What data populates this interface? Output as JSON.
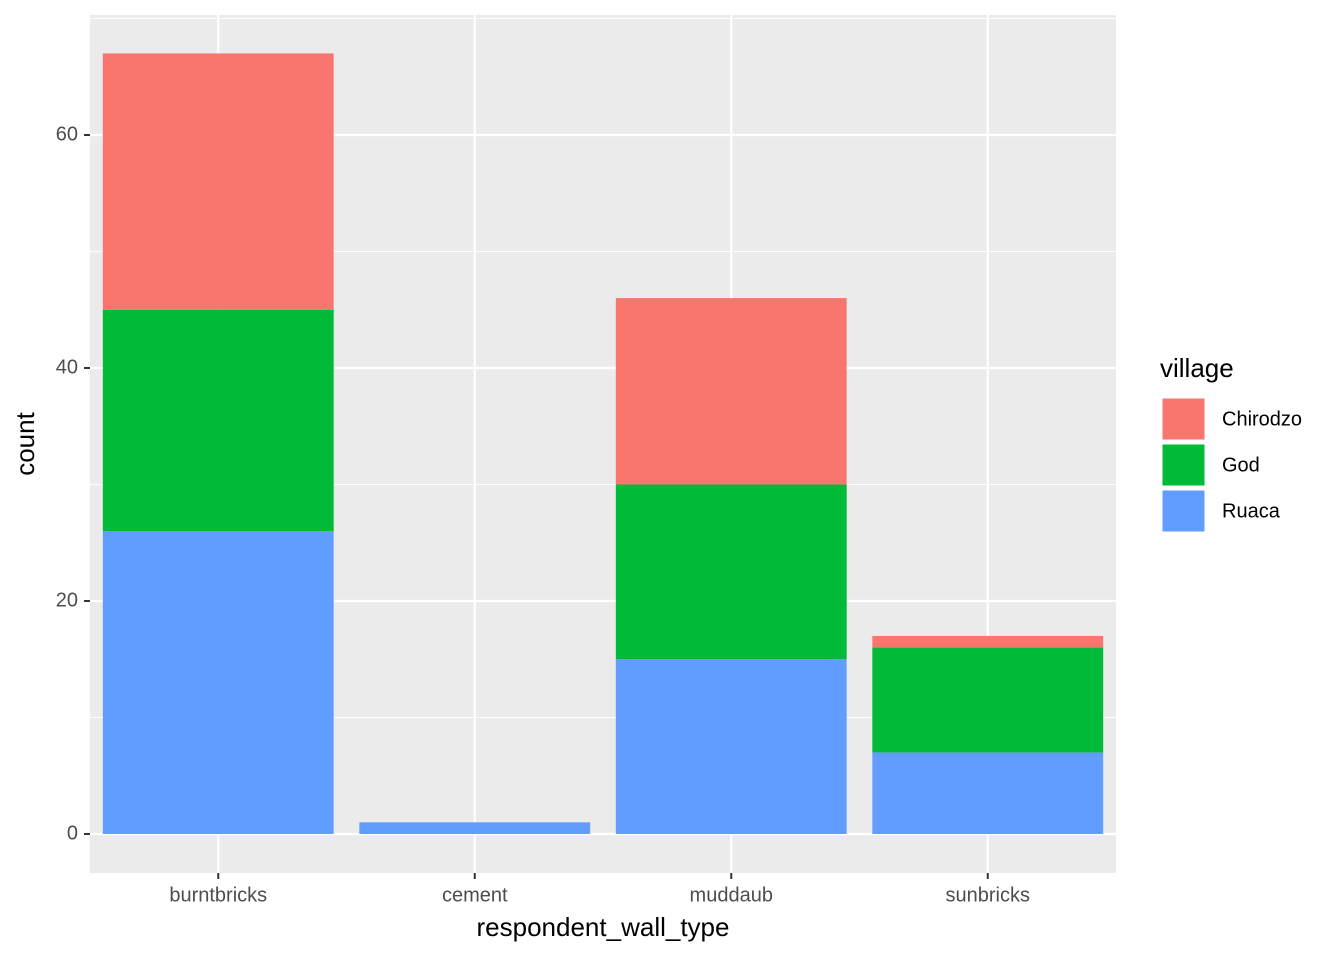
{
  "chart_data": {
    "type": "stacked_bar",
    "x_label": "respondent_wall_type",
    "y_label": "count",
    "categories": [
      "burntbricks",
      "cement",
      "muddaub",
      "sunbricks"
    ],
    "legend_title": "village",
    "legend_position": "right",
    "series": [
      {
        "name": "Chirodzo",
        "color": "#f8766d",
        "values": [
          22,
          0,
          16,
          1
        ]
      },
      {
        "name": "God",
        "color": "#00ba38",
        "values": [
          19,
          0,
          15,
          9
        ]
      },
      {
        "name": "Ruaca",
        "color": "#619cff",
        "values": [
          26,
          1,
          15,
          7
        ]
      }
    ],
    "ylim": [
      -3.35,
      70.3
    ],
    "yticks": [
      0,
      20,
      40,
      60
    ],
    "y_minor_grid": [
      10,
      30,
      50,
      70
    ],
    "grid": true
  }
}
